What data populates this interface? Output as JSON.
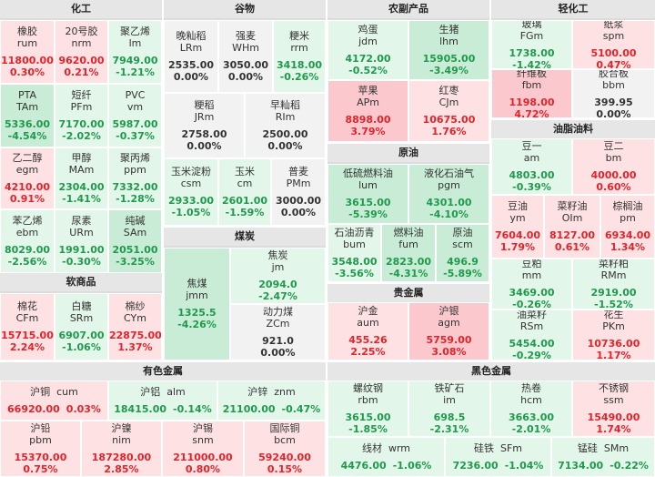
{
  "sections": {
    "chemical": "化工",
    "grain": "谷物",
    "agri": "农副产品",
    "light": "轻化工",
    "oil": "原油",
    "oilseed": "油脂油料",
    "coal": "煤炭",
    "soft": "软商品",
    "precious": "贵金属",
    "nonferrous": "有色金属",
    "ferrous": "黑色金属"
  },
  "tiles": {
    "rum": {
      "name": "橡胶",
      "code": "rum",
      "value": "11800.00",
      "pct": "0.30%"
    },
    "nrm": {
      "name": "20号胶",
      "code": "nrm",
      "value": "9620.00",
      "pct": "0.21%"
    },
    "lm": {
      "name": "聚乙烯",
      "code": "lm",
      "value": "7949.00",
      "pct": "-1.21%"
    },
    "tam": {
      "name": "PTA",
      "code": "TAm",
      "value": "5336.00",
      "pct": "-4.54%"
    },
    "pfm": {
      "name": "短纤",
      "code": "PFm",
      "value": "7170.00",
      "pct": "-2.02%"
    },
    "vm": {
      "name": "PVC",
      "code": "vm",
      "value": "5987.00",
      "pct": "-0.37%"
    },
    "egm": {
      "name": "乙二醇",
      "code": "egm",
      "value": "4210.00",
      "pct": "0.91%"
    },
    "mam": {
      "name": "甲醇",
      "code": "MAm",
      "value": "2304.00",
      "pct": "-1.41%"
    },
    "ppm": {
      "name": "聚丙烯",
      "code": "ppm",
      "value": "7332.00",
      "pct": "-1.28%"
    },
    "ebm": {
      "name": "苯乙烯",
      "code": "ebm",
      "value": "8029.00",
      "pct": "-2.56%"
    },
    "urm": {
      "name": "尿素",
      "code": "URm",
      "value": "1991.00",
      "pct": "-0.30%"
    },
    "sam": {
      "name": "纯碱",
      "code": "SAm",
      "value": "2051.00",
      "pct": "-3.25%"
    },
    "lrm": {
      "name": "晚籼稻",
      "code": "LRm",
      "value": "2535.00",
      "pct": "0.00%"
    },
    "whm": {
      "name": "强麦",
      "code": "WHm",
      "value": "3050.00",
      "pct": "0.00%"
    },
    "rrm": {
      "name": "粳米",
      "code": "rrm",
      "value": "3418.00",
      "pct": "-0.26%"
    },
    "jrm": {
      "name": "粳稻",
      "code": "JRm",
      "value": "2758.00",
      "pct": "0.00%"
    },
    "rim": {
      "name": "早籼稻",
      "code": "RIm",
      "value": "2500.00",
      "pct": "0.00%"
    },
    "csm": {
      "name": "玉米淀粉",
      "code": "csm",
      "value": "2933.00",
      "pct": "-1.05%"
    },
    "cm": {
      "name": "玉米",
      "code": "cm",
      "value": "2601.00",
      "pct": "-1.59%"
    },
    "pmm": {
      "name": "普麦",
      "code": "PMm",
      "value": "3000.00",
      "pct": "0.00%"
    },
    "jdm": {
      "name": "鸡蛋",
      "code": "jdm",
      "value": "4172.00",
      "pct": "-0.52%"
    },
    "lhm": {
      "name": "生猪",
      "code": "lhm",
      "value": "15905.00",
      "pct": "-3.49%"
    },
    "apm": {
      "name": "苹果",
      "code": "APm",
      "value": "8898.00",
      "pct": "3.79%"
    },
    "cjm": {
      "name": "红枣",
      "code": "CJm",
      "value": "10675.00",
      "pct": "1.76%"
    },
    "fgm": {
      "name": "玻璃",
      "code": "FGm",
      "value": "1738.00",
      "pct": "-1.42%"
    },
    "spm": {
      "name": "纸浆",
      "code": "spm",
      "value": "5100.00",
      "pct": "0.47%"
    },
    "fbm": {
      "name": "纤维板",
      "code": "fbm",
      "value": "1198.00",
      "pct": "4.72%"
    },
    "bbm": {
      "name": "胶合板",
      "code": "bbm",
      "value": "399.95",
      "pct": "0.00%"
    },
    "lum": {
      "name": "低硫燃料油",
      "code": "lum",
      "value": "3615.00",
      "pct": "-5.39%"
    },
    "pgm": {
      "name": "液化石油气",
      "code": "pgm",
      "value": "4301.00",
      "pct": "-4.10%"
    },
    "bum": {
      "name": "石油沥青",
      "code": "bum",
      "value": "3548.00",
      "pct": "-3.56%"
    },
    "fum": {
      "name": "燃料油",
      "code": "fum",
      "value": "2823.00",
      "pct": "-4.31%"
    },
    "scm": {
      "name": "原油",
      "code": "scm",
      "value": "496.9",
      "pct": "-5.89%"
    },
    "am": {
      "name": "豆一",
      "code": "am",
      "value": "4803.00",
      "pct": "-0.39%"
    },
    "bm": {
      "name": "豆二",
      "code": "bm",
      "value": "4000.00",
      "pct": "0.60%"
    },
    "ym": {
      "name": "豆油",
      "code": "ym",
      "value": "7604.00",
      "pct": "1.79%"
    },
    "oim": {
      "name": "菜籽油",
      "code": "OIm",
      "value": "8127.00",
      "pct": "0.61%"
    },
    "pm": {
      "name": "棕榈油",
      "code": "pm",
      "value": "6934.00",
      "pct": "1.34%"
    },
    "mm": {
      "name": "豆粕",
      "code": "mm",
      "value": "3469.00",
      "pct": "-0.26%"
    },
    "rmm": {
      "name": "菜籽粕",
      "code": "RMm",
      "value": "2919.00",
      "pct": "-1.52%"
    },
    "rsm": {
      "name": "油菜籽",
      "code": "RSm",
      "value": "5454.00",
      "pct": "-0.29%"
    },
    "pkm": {
      "name": "花生",
      "code": "PKm",
      "value": "10736.00",
      "pct": "1.17%"
    },
    "jmm": {
      "name": "焦煤",
      "code": "jmm",
      "value": "1325.5",
      "pct": "-4.26%"
    },
    "jm": {
      "name": "焦炭",
      "code": "jm",
      "value": "2094.0",
      "pct": "-2.47%"
    },
    "zcm": {
      "name": "动力煤",
      "code": "ZCm",
      "value": "921.0",
      "pct": "0.00%"
    },
    "cfm": {
      "name": "棉花",
      "code": "CFm",
      "value": "15715.00",
      "pct": "2.24%"
    },
    "srm": {
      "name": "白糖",
      "code": "SRm",
      "value": "6907.00",
      "pct": "-1.06%"
    },
    "cym": {
      "name": "棉纱",
      "code": "CYm",
      "value": "22875.00",
      "pct": "1.37%"
    },
    "aum": {
      "name": "沪金",
      "code": "aum",
      "value": "455.26",
      "pct": "2.25%"
    },
    "agm": {
      "name": "沪银",
      "code": "agm",
      "value": "5759.00",
      "pct": "3.08%"
    },
    "cum": {
      "name": "沪铜",
      "code": "cum",
      "value": "66920.00",
      "pct": "0.03%"
    },
    "alm": {
      "name": "沪铝",
      "code": "alm",
      "value": "18415.00",
      "pct": "-0.14%"
    },
    "znm": {
      "name": "沪锌",
      "code": "znm",
      "value": "21100.00",
      "pct": "-0.47%"
    },
    "pbm": {
      "name": "沪铅",
      "code": "pbm",
      "value": "15370.00",
      "pct": "0.75%"
    },
    "nim": {
      "name": "沪镍",
      "code": "nim",
      "value": "187280.00",
      "pct": "2.85%"
    },
    "snm": {
      "name": "沪锡",
      "code": "snm",
      "value": "211000.00",
      "pct": "0.80%"
    },
    "bcm": {
      "name": "国际铜",
      "code": "bcm",
      "value": "59240.00",
      "pct": "0.15%"
    },
    "rbm": {
      "name": "螺纹钢",
      "code": "rbm",
      "value": "3615.00",
      "pct": "-1.85%"
    },
    "im": {
      "name": "铁矿石",
      "code": "im",
      "value": "698.5",
      "pct": "-2.31%"
    },
    "hcm": {
      "name": "热卷",
      "code": "hcm",
      "value": "3663.00",
      "pct": "-2.01%"
    },
    "ssm": {
      "name": "不锈钢",
      "code": "ssm",
      "value": "15490.00",
      "pct": "1.74%"
    },
    "wrm": {
      "name": "线材",
      "code": "wrm",
      "value": "4476.00",
      "pct": "-1.06%"
    },
    "sfm": {
      "name": "硅铁",
      "code": "SFm",
      "value": "7236.00",
      "pct": "-1.04%"
    },
    "smm": {
      "name": "锰硅",
      "code": "SMm",
      "value": "7134.00",
      "pct": "-0.22%"
    }
  }
}
